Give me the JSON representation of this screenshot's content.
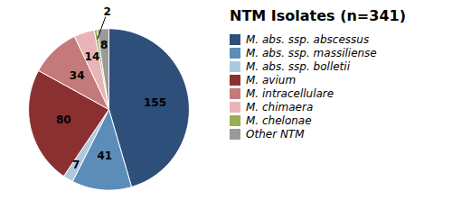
{
  "chart_data": {
    "type": "pie",
    "title": "NTM Isolates (n=341)",
    "categories": [
      "M. abs. ssp. abscessus",
      "M. abs. ssp. massiliense",
      "M. abs. ssp. bolletii",
      "M. avium",
      "M. intracellulare",
      "M. chimaera",
      "M. chelonae",
      "Other NTM"
    ],
    "values": [
      155,
      41,
      7,
      80,
      34,
      14,
      2,
      8
    ],
    "colors": [
      "#2e4f7a",
      "#5b8db8",
      "#aec8e0",
      "#8b3030",
      "#c47a7a",
      "#e8b4b8",
      "#9aad52",
      "#9a9a9a"
    ],
    "data_labels": true,
    "legend": "right"
  }
}
